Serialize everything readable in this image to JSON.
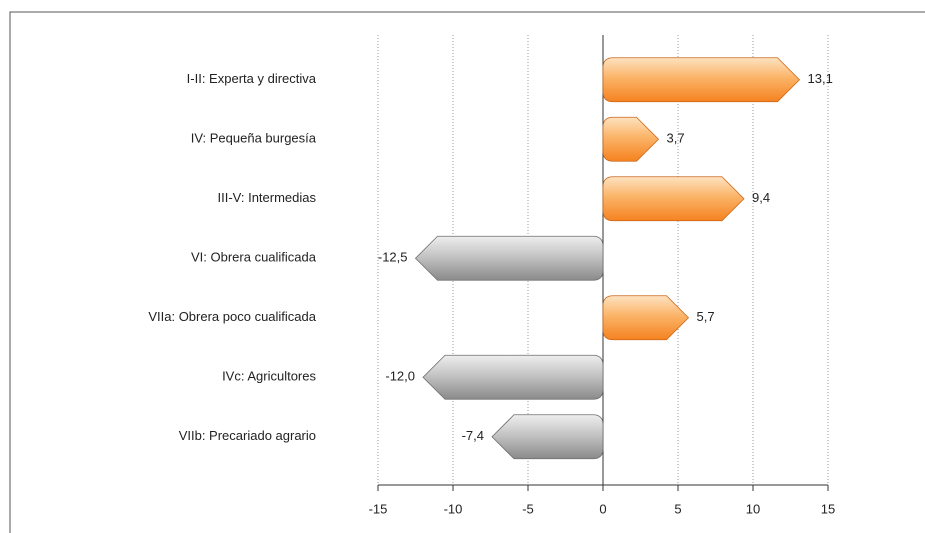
{
  "chart_data": {
    "type": "bar",
    "orientation": "horizontal",
    "categories": [
      "I-II: Experta y directiva",
      "IV: Pequeña burgesía",
      "III-V: Intermedias",
      "VI: Obrera cualificada",
      "VIIa: Obrera poco cualificada",
      "IVc: Agricultores",
      "VIIb: Precariado agrario"
    ],
    "values": [
      13.1,
      3.7,
      9.4,
      -12.5,
      5.7,
      -12.0,
      -7.4
    ],
    "value_labels": [
      "13,1",
      "3,7",
      "9,4",
      "-12,5",
      "5,7",
      "-12,0",
      "-7,4"
    ],
    "positive_color": "#f58a1f",
    "negative_color": "#9a9a9a",
    "xlim": [
      -15,
      15
    ],
    "xticks": [
      -15,
      -10,
      -5,
      0,
      5,
      10,
      15
    ],
    "grid": true
  }
}
